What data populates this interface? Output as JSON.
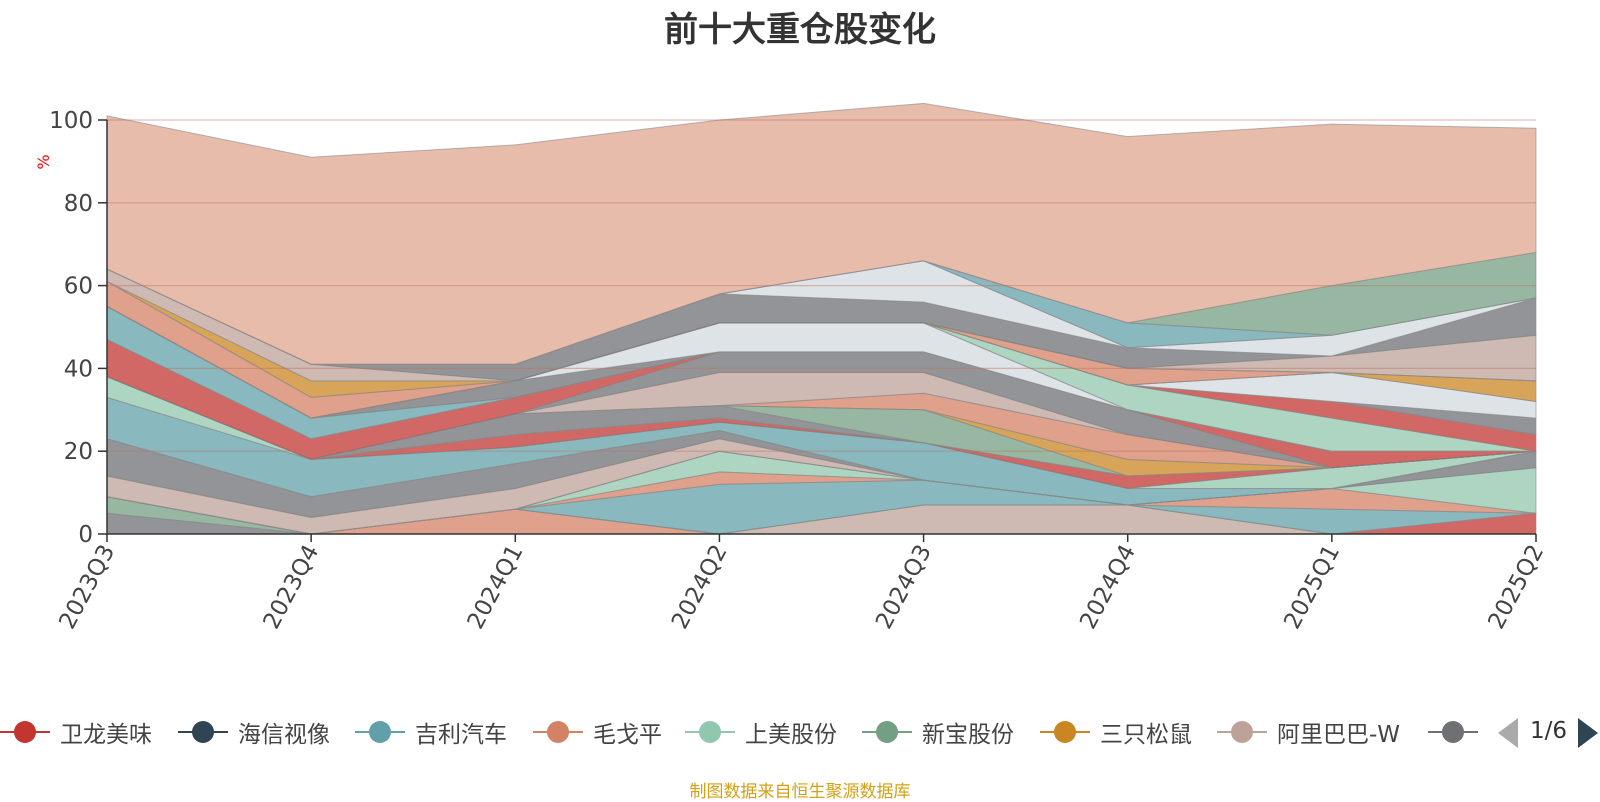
{
  "chart_data": {
    "type": "area",
    "title": "前十大重仓股变化",
    "ylabel": "%",
    "ylim": [
      0,
      100
    ],
    "yticks": [
      0,
      20,
      40,
      60,
      80,
      100
    ],
    "categories": [
      "2023Q3",
      "2023Q4",
      "2024Q1",
      "2024Q2",
      "2024Q3",
      "2024Q4",
      "2025Q1",
      "2025Q2"
    ],
    "grid": true,
    "legend_position": "bottom",
    "series": [
      {
        "name": "",
        "color": "#6e7074",
        "values": [
          5,
          0,
          0,
          0,
          0,
          0,
          0,
          0
        ]
      },
      {
        "name": "",
        "color": "#749f83",
        "values": [
          4,
          0,
          0,
          0,
          0,
          0,
          0,
          0
        ]
      },
      {
        "name": "",
        "color": "#d48265",
        "values": [
          0,
          0,
          6,
          0,
          0,
          0,
          0,
          0
        ]
      },
      {
        "name": "",
        "color": "#bda29a",
        "values": [
          0,
          0,
          0,
          0,
          7,
          7,
          0,
          0
        ]
      },
      {
        "name": "",
        "color": "#c23531",
        "values": [
          0,
          0,
          0,
          0,
          0,
          0,
          0,
          5
        ]
      },
      {
        "name": "",
        "color": "#61a0a8",
        "values": [
          0,
          0,
          0,
          12,
          6,
          0,
          6,
          0
        ]
      },
      {
        "name": "",
        "color": "#d48265",
        "values": [
          0,
          0,
          0,
          3,
          0,
          0,
          5,
          0
        ]
      },
      {
        "name": "",
        "color": "#91c7ae",
        "values": [
          0,
          0,
          0,
          5,
          0,
          0,
          0,
          11
        ]
      },
      {
        "name": "",
        "color": "#6e7074",
        "values": [
          0,
          0,
          0,
          0,
          0,
          0,
          0,
          4
        ]
      },
      {
        "name": "",
        "color": "#ca8622",
        "values": [
          0,
          0,
          0,
          0,
          0,
          0,
          0,
          0
        ]
      },
      {
        "name": "",
        "color": "#bda29a",
        "values": [
          5,
          4,
          5,
          3,
          0,
          0,
          0,
          0
        ]
      },
      {
        "name": "",
        "color": "#6e7074",
        "values": [
          9,
          5,
          6,
          2,
          0,
          0,
          0,
          0
        ]
      },
      {
        "name": "",
        "color": "#61a0a8",
        "values": [
          10,
          9,
          4,
          2,
          9,
          4,
          0,
          0
        ]
      },
      {
        "name": "",
        "color": "#91c7ae",
        "values": [
          5,
          0,
          0,
          0,
          0,
          0,
          5,
          0
        ]
      },
      {
        "name": "",
        "color": "#c23531",
        "values": [
          0,
          0,
          3,
          1,
          0,
          3,
          0,
          0
        ]
      },
      {
        "name": "",
        "color": "#6e7074",
        "values": [
          0,
          0,
          5,
          3,
          0,
          0,
          0,
          0
        ]
      },
      {
        "name": "",
        "color": "#749f83",
        "values": [
          0,
          0,
          0,
          0,
          8,
          0,
          0,
          0
        ]
      },
      {
        "name": "",
        "color": "#ca8622",
        "values": [
          0,
          0,
          0,
          0,
          0,
          4,
          0,
          0
        ]
      },
      {
        "name": "",
        "color": "#d48265",
        "values": [
          0,
          0,
          0,
          0,
          4,
          6,
          0,
          0
        ]
      },
      {
        "name": "",
        "color": "#bda29a",
        "values": [
          0,
          0,
          0,
          8,
          5,
          0,
          0,
          0
        ]
      },
      {
        "name": "",
        "color": "#6e7074",
        "values": [
          0,
          0,
          0,
          5,
          5,
          6,
          0,
          0
        ]
      },
      {
        "name": "",
        "color": "#c23531",
        "values": [
          9,
          5,
          4,
          0,
          0,
          0,
          4,
          0
        ]
      },
      {
        "name": "",
        "color": "#61a0a8",
        "values": [
          8,
          5,
          0,
          0,
          0,
          0,
          0,
          0
        ]
      },
      {
        "name": "",
        "color": "#6e7074",
        "values": [
          0,
          0,
          4,
          0,
          0,
          0,
          0,
          0
        ]
      },
      {
        "name": "",
        "color": "#d3d9df",
        "values": [
          0,
          0,
          0,
          7,
          7,
          0,
          0,
          0
        ]
      },
      {
        "name": "",
        "color": "#91c7ae",
        "values": [
          0,
          0,
          0,
          0,
          0,
          6,
          8,
          0
        ]
      },
      {
        "name": "",
        "color": "#c23531",
        "values": [
          0,
          0,
          0,
          0,
          0,
          0,
          4,
          4
        ]
      },
      {
        "name": "",
        "color": "#6e7074",
        "values": [
          0,
          0,
          0,
          0,
          0,
          0,
          0,
          4
        ]
      },
      {
        "name": "",
        "color": "#d3d9df",
        "values": [
          0,
          0,
          0,
          0,
          0,
          0,
          7,
          4
        ]
      },
      {
        "name": "",
        "color": "#ca8622",
        "values": [
          0,
          0,
          0,
          0,
          0,
          0,
          0,
          5
        ]
      },
      {
        "name": "",
        "color": "#d48265",
        "values": [
          6,
          5,
          0,
          0,
          0,
          4,
          0,
          0
        ]
      },
      {
        "name": "",
        "color": "#ca8622",
        "values": [
          0,
          4,
          0,
          0,
          0,
          0,
          0,
          0
        ]
      },
      {
        "name": "",
        "color": "#bda29a",
        "values": [
          3,
          4,
          0,
          0,
          0,
          0,
          4,
          11
        ]
      },
      {
        "name": "",
        "color": "#6e7074",
        "values": [
          0,
          0,
          4,
          7,
          5,
          5,
          0,
          9
        ]
      },
      {
        "name": "",
        "color": "#d3d9df",
        "values": [
          0,
          0,
          0,
          0,
          10,
          0,
          5,
          0
        ]
      },
      {
        "name": "",
        "color": "#61a0a8",
        "values": [
          0,
          0,
          0,
          0,
          0,
          6,
          0,
          0
        ]
      },
      {
        "name": "",
        "color": "#749f83",
        "values": [
          0,
          0,
          0,
          0,
          0,
          0,
          12,
          11
        ]
      },
      {
        "name": "",
        "color": "#e0a58f",
        "values": [
          37,
          50,
          53,
          42,
          38,
          45,
          39,
          30
        ]
      }
    ]
  },
  "legend": {
    "items": [
      {
        "label": "卫龙美味",
        "color": "#c23531"
      },
      {
        "label": "海信视像",
        "color": "#2f4554"
      },
      {
        "label": "吉利汽车",
        "color": "#61a0a8"
      },
      {
        "label": "毛戈平",
        "color": "#d48265"
      },
      {
        "label": "上美股份",
        "color": "#91c7ae"
      },
      {
        "label": "新宝股份",
        "color": "#749f83"
      },
      {
        "label": "三只松鼠",
        "color": "#ca8622"
      },
      {
        "label": "阿里巴巴-W",
        "color": "#bda29a"
      },
      {
        "label": "",
        "color": "#6e7074"
      }
    ],
    "pager_text": "1/6"
  },
  "source_note": "制图数据来自恒生聚源数据库"
}
